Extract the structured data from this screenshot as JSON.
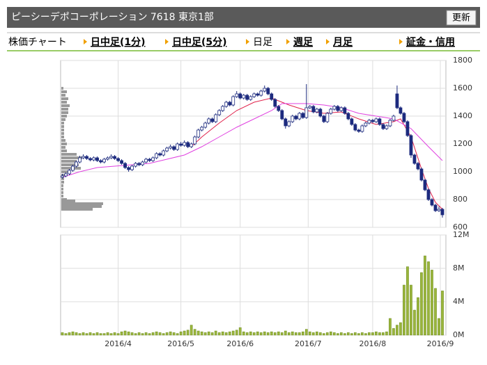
{
  "header": {
    "title": "ピーシーデポコーポレーション 7618 東京1部",
    "button": "更新"
  },
  "nav": {
    "label": "株価チャート",
    "tabs": [
      "日中足(1分)",
      "日中足(5分)",
      "日足",
      "週足",
      "月足",
      "証金・信用"
    ]
  },
  "chart_data": {
    "type": "candlestick",
    "candles": [
      [
        960,
        985,
        950,
        970
      ],
      [
        970,
        995,
        960,
        985
      ],
      [
        985,
        1020,
        975,
        1010
      ],
      [
        1010,
        1050,
        1000,
        1040
      ],
      [
        1040,
        1080,
        1030,
        1070
      ],
      [
        1070,
        1115,
        1060,
        1100
      ],
      [
        1100,
        1125,
        1090,
        1110
      ],
      [
        1110,
        1120,
        1085,
        1095
      ],
      [
        1095,
        1105,
        1075,
        1085
      ],
      [
        1085,
        1110,
        1075,
        1100
      ],
      [
        1100,
        1110,
        1070,
        1080
      ],
      [
        1080,
        1090,
        1060,
        1070
      ],
      [
        1070,
        1100,
        1060,
        1090
      ],
      [
        1090,
        1110,
        1080,
        1100
      ],
      [
        1100,
        1125,
        1090,
        1110
      ],
      [
        1110,
        1120,
        1085,
        1095
      ],
      [
        1095,
        1105,
        1070,
        1080
      ],
      [
        1080,
        1090,
        1050,
        1060
      ],
      [
        1060,
        1070,
        1020,
        1030
      ],
      [
        1030,
        1040,
        1000,
        1015
      ],
      [
        1015,
        1050,
        1005,
        1040
      ],
      [
        1040,
        1070,
        1030,
        1060
      ],
      [
        1060,
        1070,
        1040,
        1050
      ],
      [
        1050,
        1080,
        1040,
        1070
      ],
      [
        1070,
        1100,
        1060,
        1090
      ],
      [
        1090,
        1100,
        1070,
        1080
      ],
      [
        1080,
        1110,
        1070,
        1100
      ],
      [
        1100,
        1140,
        1090,
        1130
      ],
      [
        1130,
        1140,
        1110,
        1120
      ],
      [
        1120,
        1160,
        1110,
        1150
      ],
      [
        1150,
        1180,
        1140,
        1170
      ],
      [
        1170,
        1195,
        1160,
        1180
      ],
      [
        1180,
        1190,
        1150,
        1160
      ],
      [
        1160,
        1210,
        1150,
        1200
      ],
      [
        1200,
        1215,
        1180,
        1190
      ],
      [
        1190,
        1225,
        1180,
        1210
      ],
      [
        1210,
        1220,
        1170,
        1180
      ],
      [
        1180,
        1210,
        1170,
        1200
      ],
      [
        1200,
        1260,
        1190,
        1250
      ],
      [
        1250,
        1310,
        1240,
        1300
      ],
      [
        1300,
        1330,
        1290,
        1320
      ],
      [
        1320,
        1360,
        1310,
        1350
      ],
      [
        1350,
        1390,
        1340,
        1380
      ],
      [
        1380,
        1390,
        1350,
        1360
      ],
      [
        1360,
        1420,
        1350,
        1410
      ],
      [
        1410,
        1450,
        1400,
        1440
      ],
      [
        1440,
        1480,
        1430,
        1470
      ],
      [
        1470,
        1510,
        1460,
        1500
      ],
      [
        1500,
        1510,
        1470,
        1480
      ],
      [
        1480,
        1550,
        1470,
        1540
      ],
      [
        1540,
        1580,
        1530,
        1560
      ],
      [
        1560,
        1570,
        1520,
        1530
      ],
      [
        1530,
        1560,
        1520,
        1550
      ],
      [
        1550,
        1560,
        1510,
        1520
      ],
      [
        1520,
        1550,
        1510,
        1540
      ],
      [
        1540,
        1570,
        1530,
        1560
      ],
      [
        1560,
        1570,
        1540,
        1550
      ],
      [
        1550,
        1590,
        1540,
        1580
      ],
      [
        1580,
        1620,
        1570,
        1600
      ],
      [
        1600,
        1610,
        1550,
        1560
      ],
      [
        1560,
        1570,
        1510,
        1520
      ],
      [
        1520,
        1530,
        1460,
        1470
      ],
      [
        1470,
        1480,
        1430,
        1440
      ],
      [
        1440,
        1450,
        1370,
        1380
      ],
      [
        1380,
        1390,
        1310,
        1330
      ],
      [
        1330,
        1370,
        1320,
        1360
      ],
      [
        1360,
        1410,
        1350,
        1400
      ],
      [
        1400,
        1410,
        1370,
        1380
      ],
      [
        1380,
        1430,
        1370,
        1420
      ],
      [
        1420,
        1430,
        1380,
        1390
      ],
      [
        1390,
        1630,
        1380,
        1460
      ],
      [
        1460,
        1480,
        1450,
        1470
      ],
      [
        1470,
        1480,
        1420,
        1430
      ],
      [
        1430,
        1460,
        1420,
        1450
      ],
      [
        1450,
        1460,
        1390,
        1400
      ],
      [
        1400,
        1410,
        1350,
        1360
      ],
      [
        1360,
        1430,
        1350,
        1420
      ],
      [
        1420,
        1460,
        1410,
        1450
      ],
      [
        1450,
        1480,
        1440,
        1470
      ],
      [
        1470,
        1480,
        1430,
        1440
      ],
      [
        1440,
        1470,
        1430,
        1460
      ],
      [
        1460,
        1470,
        1410,
        1420
      ],
      [
        1420,
        1430,
        1370,
        1380
      ],
      [
        1380,
        1390,
        1330,
        1340
      ],
      [
        1340,
        1350,
        1290,
        1300
      ],
      [
        1300,
        1310,
        1280,
        1290
      ],
      [
        1290,
        1340,
        1280,
        1330
      ],
      [
        1330,
        1360,
        1320,
        1350
      ],
      [
        1350,
        1380,
        1340,
        1370
      ],
      [
        1370,
        1380,
        1350,
        1360
      ],
      [
        1360,
        1390,
        1350,
        1380
      ],
      [
        1380,
        1390,
        1330,
        1340
      ],
      [
        1340,
        1350,
        1300,
        1310
      ],
      [
        1310,
        1340,
        1300,
        1330
      ],
      [
        1330,
        1380,
        1320,
        1370
      ],
      [
        1370,
        1410,
        1360,
        1400
      ],
      [
        1560,
        1620,
        1450,
        1460
      ],
      [
        1460,
        1470,
        1410,
        1420
      ],
      [
        1420,
        1430,
        1350,
        1360
      ],
      [
        1360,
        1370,
        1250,
        1260
      ],
      [
        1260,
        1270,
        1100,
        1120
      ],
      [
        1120,
        1130,
        1050,
        1060
      ],
      [
        1060,
        1070,
        1010,
        1020
      ],
      [
        1020,
        1030,
        930,
        940
      ],
      [
        940,
        950,
        860,
        870
      ],
      [
        870,
        880,
        790,
        800
      ],
      [
        800,
        810,
        750,
        760
      ],
      [
        760,
        770,
        710,
        720
      ],
      [
        720,
        750,
        710,
        730
      ],
      [
        730,
        740,
        670,
        690
      ]
    ],
    "up_color": "#ffffff",
    "down_color": "#1c2a7e",
    "xlim": [
      -0.5,
      110
    ],
    "xticks": [
      {
        "value": 16,
        "label": "2016/4"
      },
      {
        "value": 34,
        "label": "2016/5"
      },
      {
        "value": 51,
        "label": "2016/6"
      },
      {
        "value": 70.5,
        "label": "2016/7"
      },
      {
        "value": 89,
        "label": "2016/8"
      },
      {
        "value": 108.4,
        "label": "2016/9"
      }
    ],
    "ylim": [
      600,
      1800
    ],
    "yticks": [
      600,
      800,
      1000,
      1200,
      1400,
      1600,
      1800
    ],
    "grid": true,
    "series": [
      {
        "color": "#e0204a",
        "x": [
          37,
          40,
          45,
          50,
          55,
          60,
          65,
          70,
          75,
          80,
          85,
          90,
          95,
          97,
          100,
          103,
          105,
          107,
          109
        ],
        "values": [
          1180,
          1250,
          1350,
          1440,
          1500,
          1530,
          1480,
          1440,
          1420,
          1430,
          1380,
          1340,
          1360,
          1380,
          1250,
          1020,
          880,
          780,
          730
        ]
      },
      {
        "color": "#e040e0",
        "x": [
          0,
          5,
          10,
          15,
          20,
          25,
          30,
          35,
          40,
          45,
          50,
          55,
          60,
          63,
          70,
          75,
          80,
          85,
          90,
          95,
          100,
          105,
          109
        ],
        "values": [
          960,
          1000,
          1030,
          1040,
          1050,
          1060,
          1090,
          1120,
          1180,
          1250,
          1320,
          1380,
          1440,
          1490,
          1490,
          1480,
          1460,
          1420,
          1400,
          1380,
          1310,
          1180,
          1080
        ]
      }
    ],
    "volume_profile": {
      "color": "#999999",
      "levels": [
        1600,
        1575,
        1550,
        1525,
        1500,
        1475,
        1450,
        1425,
        1400,
        1375,
        1350,
        1325,
        1300,
        1275,
        1250,
        1225,
        1200,
        1175,
        1150,
        1125,
        1100,
        1075,
        1050,
        1025,
        1000,
        975,
        950,
        925,
        900,
        875,
        850,
        825,
        800,
        790,
        770,
        750,
        730
      ],
      "values": [
        3,
        8,
        6,
        10,
        8,
        12,
        10,
        10,
        8,
        6,
        4,
        4,
        4,
        4,
        4,
        6,
        8,
        6,
        8,
        22,
        30,
        22,
        25,
        28,
        12,
        6,
        4,
        4,
        3,
        3,
        3,
        3,
        8,
        20,
        60,
        58,
        45
      ]
    },
    "volume": {
      "color": "#9ab53c",
      "ylim": [
        0,
        12
      ],
      "yticks": [
        {
          "value": 0,
          "label": "0M"
        },
        {
          "value": 4,
          "label": "4M"
        },
        {
          "value": 8,
          "label": "8M"
        },
        {
          "value": 12,
          "label": "12M"
        }
      ],
      "values": [
        0.3,
        0.2,
        0.3,
        0.4,
        0.3,
        0.2,
        0.3,
        0.2,
        0.3,
        0.2,
        0.3,
        0.2,
        0.2,
        0.3,
        0.2,
        0.3,
        0.2,
        0.4,
        0.5,
        0.4,
        0.3,
        0.2,
        0.3,
        0.2,
        0.3,
        0.2,
        0.3,
        0.4,
        0.3,
        0.2,
        0.3,
        0.4,
        0.3,
        0.2,
        0.4,
        0.5,
        0.6,
        1.2,
        0.7,
        0.5,
        0.4,
        0.3,
        0.4,
        0.3,
        0.5,
        0.3,
        0.4,
        0.3,
        0.4,
        0.5,
        0.6,
        0.9,
        0.4,
        0.3,
        0.4,
        0.3,
        0.4,
        0.3,
        0.4,
        0.3,
        0.4,
        0.3,
        0.4,
        0.3,
        0.5,
        0.3,
        0.4,
        0.3,
        0.3,
        0.4,
        0.7,
        0.4,
        0.3,
        0.4,
        0.3,
        0.2,
        0.3,
        0.4,
        0.3,
        0.2,
        0.3,
        0.2,
        0.3,
        0.2,
        0.3,
        0.2,
        0.3,
        0.2,
        0.3,
        0.3,
        0.4,
        0.3,
        0.3,
        0.4,
        2.0,
        0.8,
        1.2,
        1.5,
        6.0,
        8.2,
        6.0,
        3.0,
        4.5,
        7.5,
        9.5,
        8.8,
        7.8,
        5.6,
        2.0,
        5.3
      ]
    }
  }
}
